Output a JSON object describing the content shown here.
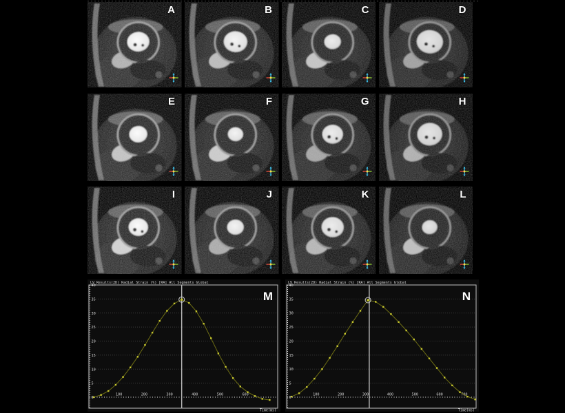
{
  "figure": {
    "description": "Cardiac MRI short-axis cine frames with radial strain curves",
    "panels": [
      {
        "label": "A"
      },
      {
        "label": "B"
      },
      {
        "label": "C"
      },
      {
        "label": "D"
      },
      {
        "label": "E"
      },
      {
        "label": "F"
      },
      {
        "label": "G"
      },
      {
        "label": "H"
      },
      {
        "label": "I"
      },
      {
        "label": "J"
      },
      {
        "label": "K"
      },
      {
        "label": "L"
      }
    ],
    "label_color": "#ffffff",
    "orientation_marker_colors": {
      "vertical": "#3fc6f0",
      "left": "#ff5040",
      "right": "#a0e832",
      "center": "#ffd84a"
    }
  },
  "chart_data": [
    {
      "type": "line",
      "panel_label": "M",
      "title": "LV Results(2D) Radial Strain (%) [RA] All Segments Global",
      "xlabel": "Time(ms)",
      "ylabel": "",
      "xlim": [
        0,
        725
      ],
      "ylim": [
        -4,
        40
      ],
      "xticks": [
        100,
        200,
        300,
        400,
        500,
        600
      ],
      "yticks": [
        40,
        35,
        30,
        25,
        20,
        15,
        10,
        5,
        0
      ],
      "grid": "horizontal dotted",
      "legend": "none",
      "zero_line": "dotted white at 0",
      "es_line_x": 348,
      "peak": {
        "x": 348,
        "y": 34.8
      },
      "x": [
        0,
        29,
        58,
        87,
        116,
        145,
        174,
        203,
        232,
        261,
        290,
        319,
        348,
        377,
        406,
        435,
        464,
        493,
        522,
        551,
        580,
        609,
        638,
        667,
        696
      ],
      "y": [
        0,
        0.8,
        2.2,
        4.4,
        7.2,
        10.6,
        14.4,
        18.6,
        23,
        27.2,
        30.8,
        33.4,
        34.8,
        33.6,
        30.6,
        26.2,
        21,
        15.6,
        10.8,
        6.8,
        3.8,
        1.8,
        0.4,
        -0.6,
        -1
      ],
      "colors": {
        "curve": "#6e6e14",
        "marker": "#c9c92e",
        "peak_ring": "#d0d0d0",
        "es_line": "#b8b8b8",
        "zero_line": "#e8e8e8",
        "grid": "#3c3c3c",
        "border": "#c4c4c4",
        "text": "#d8d8d8",
        "background": "#0d0d0d",
        "panel_letter": "#ffffff"
      }
    },
    {
      "type": "line",
      "panel_label": "N",
      "title": "LV Results(2D) Radial Strain (%) [RA] All Segments Global",
      "xlabel": "Time(ms)",
      "ylabel": "",
      "xlim": [
        0,
        745
      ],
      "ylim": [
        -4,
        40
      ],
      "xticks": [
        100,
        200,
        300,
        400,
        500,
        600,
        700
      ],
      "yticks": [
        40,
        35,
        30,
        25,
        20,
        15,
        10,
        5,
        0
      ],
      "grid": "horizontal dotted",
      "legend": "none",
      "zero_line": "dotted white at 0",
      "es_line_x": 315,
      "peak": {
        "x": 310,
        "y": 34.6
      },
      "x": [
        0,
        31,
        62,
        93,
        124,
        155,
        186,
        217,
        248,
        279,
        310,
        341,
        372,
        403,
        434,
        465,
        496,
        527,
        558,
        589,
        620,
        651,
        682,
        713,
        744
      ],
      "y": [
        0.2,
        1.4,
        3.6,
        6.6,
        10,
        14,
        18.2,
        22.6,
        26.8,
        30.8,
        34.6,
        34,
        32.2,
        29.6,
        26.8,
        23.8,
        20.6,
        17.2,
        13.8,
        10.4,
        7,
        4.2,
        1.8,
        0.2,
        -0.8
      ],
      "colors": {
        "curve": "#6e6e14",
        "marker": "#c9c92e",
        "peak_ring": "#d0d0d0",
        "es_line": "#b8b8b8",
        "zero_line": "#e8e8e8",
        "grid": "#3c3c3c",
        "border": "#c4c4c4",
        "text": "#d8d8d8",
        "background": "#0d0d0d",
        "panel_letter": "#ffffff"
      }
    }
  ]
}
